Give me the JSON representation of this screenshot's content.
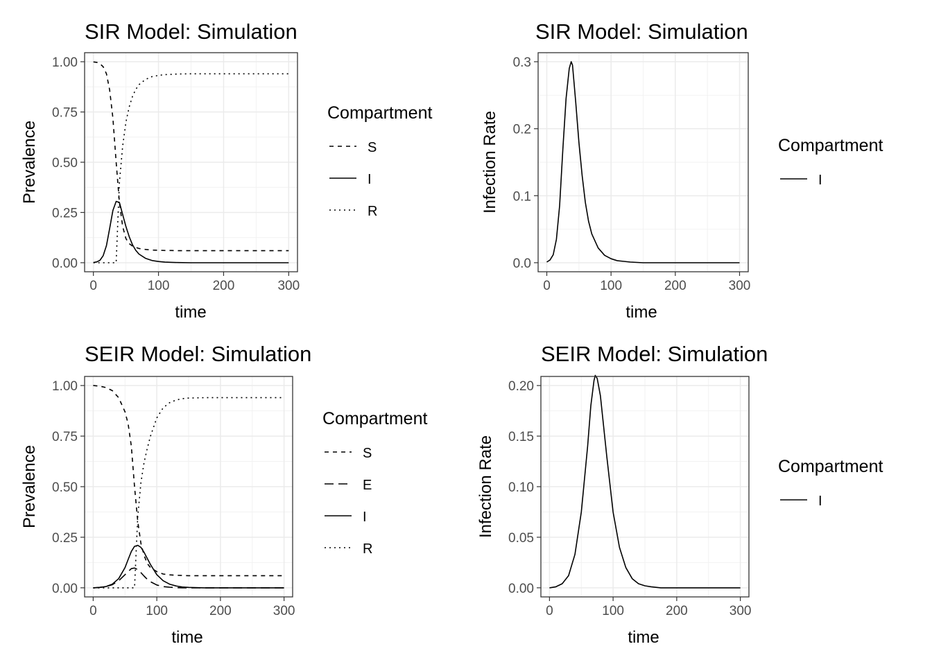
{
  "chart_data": [
    {
      "type": "line",
      "title": "SIR Model: Simulation",
      "xlabel": "time",
      "ylabel": "Prevalence",
      "xlim": [
        0,
        300
      ],
      "ylim": [
        0,
        1
      ],
      "xticks": [
        0,
        100,
        200,
        300
      ],
      "xtick_labels": [
        "0",
        "100",
        "200",
        "300"
      ],
      "yticks": [
        0,
        0.25,
        0.5,
        0.75,
        1
      ],
      "ytick_labels": [
        "0.00",
        "0.25",
        "0.50",
        "0.75",
        "1.00"
      ],
      "grid": true,
      "legend_title": "Compartment",
      "legend_position": "right",
      "x": [
        0,
        5,
        10,
        15,
        20,
        25,
        30,
        35,
        40,
        45,
        50,
        55,
        60,
        65,
        70,
        80,
        90,
        100,
        110,
        120,
        130,
        150,
        175,
        200,
        250,
        300
      ],
      "series": [
        {
          "name": "S",
          "linetype": "dashed",
          "values": [
            0.999,
            0.997,
            0.99,
            0.975,
            0.94,
            0.86,
            0.72,
            0.5,
            0.3,
            0.18,
            0.12,
            0.095,
            0.083,
            0.076,
            0.071,
            0.066,
            0.063,
            0.062,
            0.061,
            0.061,
            0.06,
            0.06,
            0.06,
            0.06,
            0.06,
            0.06
          ]
        },
        {
          "name": "I",
          "linetype": "solid",
          "values": [
            0.001,
            0.004,
            0.012,
            0.035,
            0.085,
            0.17,
            0.26,
            0.305,
            0.3,
            0.24,
            0.18,
            0.13,
            0.09,
            0.062,
            0.043,
            0.022,
            0.011,
            0.006,
            0.003,
            0.002,
            0.001,
            0,
            0,
            0,
            0,
            0
          ]
        },
        {
          "name": "R",
          "linetype": "dotted",
          "values": [
            0,
            0.0,
            0.0,
            0.0,
            0.0,
            0.0,
            0.0,
            0.0,
            0.4,
            0.58,
            0.7,
            0.775,
            0.827,
            0.862,
            0.886,
            0.912,
            0.926,
            0.932,
            0.936,
            0.937,
            0.939,
            0.94,
            0.94,
            0.94,
            0.94,
            0.94
          ]
        }
      ]
    },
    {
      "type": "line",
      "title": "SIR Model: Simulation",
      "xlabel": "time",
      "ylabel": "Infection Rate",
      "xlim": [
        0,
        300
      ],
      "ylim": [
        0,
        0.3
      ],
      "xticks": [
        0,
        100,
        200,
        300
      ],
      "xtick_labels": [
        "0",
        "100",
        "200",
        "300"
      ],
      "yticks": [
        0,
        0.1,
        0.2,
        0.3
      ],
      "ytick_labels": [
        "0.0",
        "0.1",
        "0.2",
        "0.3"
      ],
      "grid": true,
      "legend_title": "Compartment",
      "legend_position": "right",
      "x": [
        0,
        5,
        10,
        15,
        20,
        25,
        30,
        35,
        38,
        40,
        45,
        50,
        55,
        60,
        65,
        70,
        80,
        90,
        100,
        110,
        120,
        130,
        150,
        175,
        200,
        250,
        300
      ],
      "series": [
        {
          "name": "I",
          "linetype": "solid",
          "values": [
            0.001,
            0.004,
            0.012,
            0.035,
            0.085,
            0.17,
            0.245,
            0.29,
            0.3,
            0.295,
            0.24,
            0.18,
            0.13,
            0.09,
            0.062,
            0.043,
            0.022,
            0.011,
            0.006,
            0.003,
            0.002,
            0.001,
            0,
            0,
            0,
            0,
            0
          ]
        }
      ]
    },
    {
      "type": "line",
      "title": "SEIR Model: Simulation",
      "xlabel": "time",
      "ylabel": "Prevalence",
      "xlim": [
        0,
        300
      ],
      "ylim": [
        0,
        1
      ],
      "xticks": [
        0,
        100,
        200,
        300
      ],
      "xtick_labels": [
        "0",
        "100",
        "200",
        "300"
      ],
      "yticks": [
        0,
        0.25,
        0.5,
        0.75,
        1
      ],
      "ytick_labels": [
        "0.00",
        "0.25",
        "0.50",
        "0.75",
        "1.00"
      ],
      "grid": true,
      "legend_title": "Compartment",
      "legend_position": "right",
      "x": [
        0,
        10,
        20,
        30,
        40,
        50,
        55,
        60,
        65,
        70,
        75,
        80,
        85,
        90,
        100,
        110,
        120,
        130,
        140,
        150,
        175,
        200,
        250,
        300
      ],
      "series": [
        {
          "name": "S",
          "linetype": "dashed",
          "values": [
            1.0,
            0.997,
            0.99,
            0.975,
            0.94,
            0.87,
            0.81,
            0.7,
            0.5,
            0.33,
            0.22,
            0.16,
            0.12,
            0.1,
            0.08,
            0.068,
            0.064,
            0.062,
            0.061,
            0.06,
            0.06,
            0.06,
            0.06,
            0.06
          ]
        },
        {
          "name": "E",
          "linetype": "longdash",
          "values": [
            0.0,
            0.002,
            0.006,
            0.015,
            0.035,
            0.065,
            0.08,
            0.095,
            0.098,
            0.09,
            0.075,
            0.058,
            0.042,
            0.03,
            0.014,
            0.006,
            0.003,
            0.001,
            0.0,
            0.0,
            0.0,
            0.0,
            0.0,
            0.0
          ]
        },
        {
          "name": "I",
          "linetype": "solid",
          "values": [
            0.0,
            0.002,
            0.006,
            0.018,
            0.045,
            0.1,
            0.14,
            0.18,
            0.205,
            0.21,
            0.2,
            0.175,
            0.145,
            0.115,
            0.065,
            0.035,
            0.018,
            0.009,
            0.004,
            0.002,
            0.0,
            0.0,
            0.0,
            0.0
          ]
        },
        {
          "name": "R",
          "linetype": "dotted",
          "values": [
            0.0,
            0.0,
            0.0,
            0.0,
            0.0,
            0.0,
            0.0,
            0.0,
            0.0,
            0.35,
            0.52,
            0.62,
            0.69,
            0.75,
            0.84,
            0.89,
            0.915,
            0.928,
            0.935,
            0.938,
            0.94,
            0.94,
            0.94,
            0.94
          ]
        }
      ]
    },
    {
      "type": "line",
      "title": "SEIR Model: Simulation",
      "xlabel": "time",
      "ylabel": "Infection Rate",
      "xlim": [
        0,
        300
      ],
      "ylim": [
        0,
        0.2
      ],
      "xticks": [
        0,
        100,
        200,
        300
      ],
      "xtick_labels": [
        "0",
        "100",
        "200",
        "300"
      ],
      "yticks": [
        0,
        0.05,
        0.1,
        0.15,
        0.2
      ],
      "ytick_labels": [
        "0.00",
        "0.05",
        "0.10",
        "0.15",
        "0.20"
      ],
      "grid": true,
      "legend_title": "Compartment",
      "legend_position": "right",
      "x": [
        0,
        10,
        20,
        30,
        40,
        50,
        60,
        65,
        70,
        72,
        75,
        80,
        85,
        90,
        100,
        110,
        120,
        130,
        140,
        150,
        160,
        175,
        200,
        250,
        300
      ],
      "series": [
        {
          "name": "I",
          "linetype": "solid",
          "values": [
            0.0,
            0.001,
            0.004,
            0.012,
            0.033,
            0.075,
            0.14,
            0.18,
            0.205,
            0.21,
            0.207,
            0.19,
            0.16,
            0.13,
            0.075,
            0.04,
            0.02,
            0.009,
            0.004,
            0.002,
            0.001,
            0.0,
            0.0,
            0.0,
            0.0
          ]
        }
      ]
    }
  ]
}
